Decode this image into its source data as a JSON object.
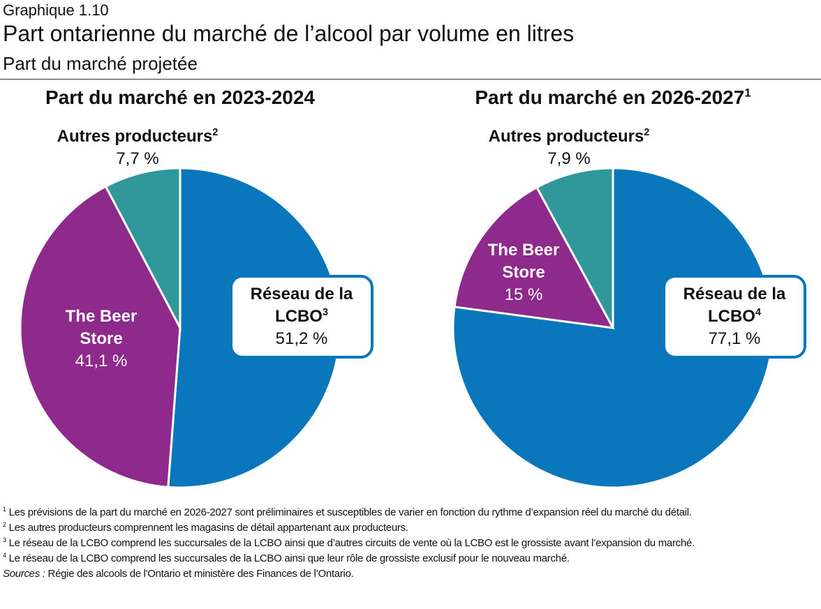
{
  "header": {
    "label": "Graphique 1.10",
    "title": "Part ontarienne du marché de l’alcool par volume en litres",
    "subtitle": "Part du marché projetée"
  },
  "chart_data": [
    {
      "type": "pie",
      "title": "Part du marché en 2023-2024",
      "categories": [
        "Réseau de la LCBO",
        "The Beer Store",
        "Autres producteurs"
      ],
      "category_notes": [
        "3",
        null,
        "2"
      ],
      "values": [
        51.2,
        41.1,
        7.7
      ],
      "value_labels": [
        "51,2 %",
        "41,1 %",
        "7,7 %"
      ],
      "colors": [
        "#0a77bd",
        "#8e2a8c",
        "#30989a"
      ]
    },
    {
      "type": "pie",
      "title": "Part du marché en 2026-2027",
      "title_note": "1",
      "categories": [
        "Réseau de la LCBO",
        "The Beer Store",
        "Autres producteurs"
      ],
      "category_notes": [
        "4",
        null,
        "2"
      ],
      "values": [
        77.1,
        15,
        7.9
      ],
      "value_labels": [
        "77,1 %",
        "15 %",
        "7,9 %"
      ],
      "colors": [
        "#0a77bd",
        "#8e2a8c",
        "#30989a"
      ]
    }
  ],
  "footnotes": [
    {
      "mark": "1",
      "text": "Les prévisions de la part du marché en 2026-2027 sont préliminaires et susceptibles de varier en fonction du rythme d’expansion réel du marché du détail."
    },
    {
      "mark": "2",
      "text": "Les autres producteurs comprennent les magasins de détail appartenant aux producteurs."
    },
    {
      "mark": "3",
      "text": "Le réseau de la LCBO comprend les succursales de la LCBO ainsi que d’autres circuits de vente où la LCBO est le grossiste avant l’expansion du marché."
    },
    {
      "mark": "4",
      "text": "Le réseau de la LCBO comprend les succursales de la LCBO ainsi que leur rôle de grossiste exclusif pour le nouveau marché."
    }
  ],
  "sources": {
    "label": "Sources :",
    "text": "Régie des alcools de l'Ontario et ministère des Finances de l’Ontario."
  }
}
